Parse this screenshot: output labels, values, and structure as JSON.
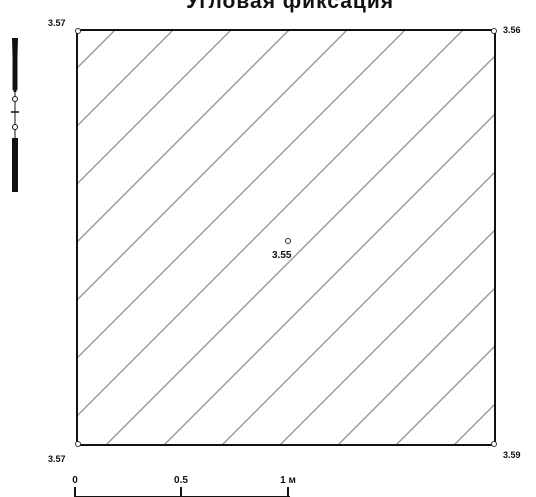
{
  "title": "Угловая фиксация",
  "corners": {
    "top_left": "3.57",
    "top_right": "3.56",
    "bottom_left": "3.57",
    "bottom_right": "3.59",
    "center": "3.55"
  },
  "scale_bar": {
    "labels": [
      "0",
      "0.5",
      "1 м"
    ]
  },
  "colors": {
    "frame": "#111111",
    "hatch": "#9a9a9a",
    "text": "#111111"
  },
  "hatch_pattern": "diagonal lines top-right to bottom-left",
  "north_arrow_icon": "vertical-slider-icon"
}
